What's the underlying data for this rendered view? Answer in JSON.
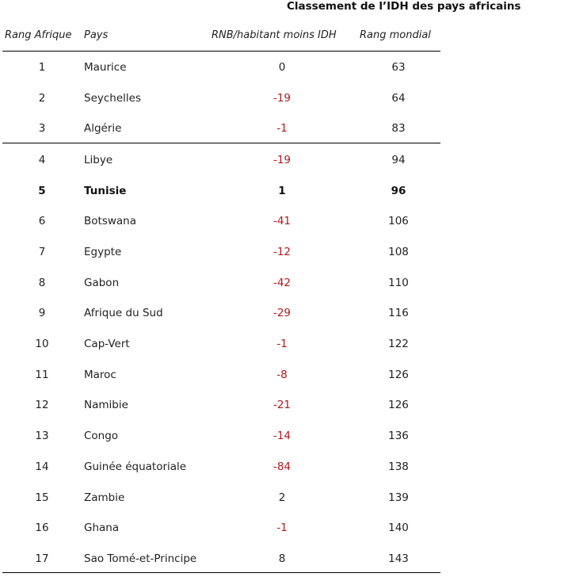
{
  "title": "Classement de l’IDH des pays africains",
  "columns": {
    "rank": "Rang Afrique",
    "country": "Pays",
    "rnb": "RNB/habitant moins IDH",
    "world": "Rang mondial"
  },
  "rows": [
    {
      "rank": "1",
      "country": "Maurice",
      "rnb": "0",
      "world": "63"
    },
    {
      "rank": "2",
      "country": "Seychelles",
      "rnb": "-19",
      "world": "64"
    },
    {
      "rank": "3",
      "country": "Algérie",
      "rnb": "-1",
      "world": "83"
    },
    {
      "rank": "4",
      "country": "Libye",
      "rnb": "-19",
      "world": "94"
    },
    {
      "rank": "5",
      "country": "Tunisie",
      "rnb": "1",
      "world": "96"
    },
    {
      "rank": "6",
      "country": "Botswana",
      "rnb": "-41",
      "world": "106"
    },
    {
      "rank": "7",
      "country": "Egypte",
      "rnb": "-12",
      "world": "108"
    },
    {
      "rank": "8",
      "country": "Gabon",
      "rnb": "-42",
      "world": "110"
    },
    {
      "rank": "9",
      "country": "Afrique du Sud",
      "rnb": "-29",
      "world": "116"
    },
    {
      "rank": "10",
      "country": "Cap-Vert",
      "rnb": "-1",
      "world": "122"
    },
    {
      "rank": "11",
      "country": "Maroc",
      "rnb": "-8",
      "world": "126"
    },
    {
      "rank": "12",
      "country": "Namibie",
      "rnb": "-21",
      "world": "126"
    },
    {
      "rank": "13",
      "country": "Congo",
      "rnb": "-14",
      "world": "136"
    },
    {
      "rank": "14",
      "country": "Guinée équatoriale",
      "rnb": "-84",
      "world": "138"
    },
    {
      "rank": "15",
      "country": "Zambie",
      "rnb": "2",
      "world": "139"
    },
    {
      "rank": "16",
      "country": "Ghana",
      "rnb": "-1",
      "world": "140"
    },
    {
      "rank": "17",
      "country": "Sao Tomé-et-Principe",
      "rnb": "8",
      "world": "143"
    }
  ],
  "highlighted_country": "Tunisie",
  "colors": {
    "negative": "#b0191b",
    "text": "#222222"
  }
}
